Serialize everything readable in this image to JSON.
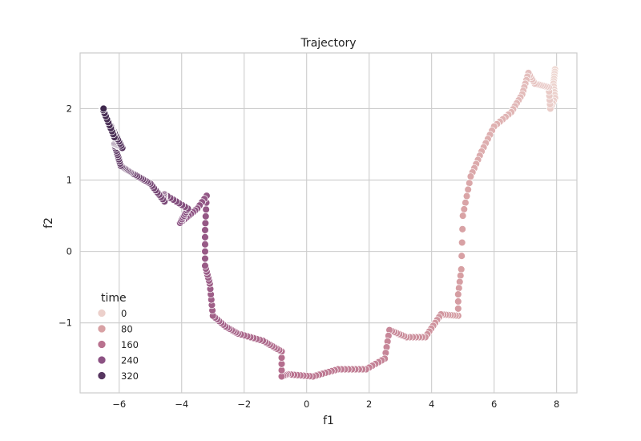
{
  "chart_data": {
    "type": "scatter",
    "title": "Trajectory",
    "xlabel": "f1",
    "ylabel": "f2",
    "xlim": [
      -7.25,
      8.65
    ],
    "ylim": [
      -1.98,
      2.78
    ],
    "xticks": [
      -6,
      -4,
      -2,
      0,
      2,
      4,
      6,
      8
    ],
    "xtick_labels": [
      "−6",
      "−4",
      "−2",
      "0",
      "2",
      "4",
      "6",
      "8"
    ],
    "yticks": [
      -1,
      0,
      1,
      2
    ],
    "ytick_labels": [
      "−1",
      "0",
      "1",
      "2"
    ],
    "grid": true,
    "legend": {
      "title": "time",
      "placement": "lower-left",
      "entries": [
        {
          "label": "0",
          "color": "#ecd0cb"
        },
        {
          "label": "80",
          "color": "#d8a1a4"
        },
        {
          "label": "160",
          "color": "#b9728f"
        },
        {
          "label": "240",
          "color": "#8c5283"
        },
        {
          "label": "320",
          "color": "#573660"
        }
      ]
    },
    "hue": {
      "name": "time",
      "min": 0,
      "max": 350,
      "color_stops": [
        "#efd9d3",
        "#d8a1a4",
        "#b9728f",
        "#8c5283",
        "#573660",
        "#2d1e3e"
      ]
    },
    "waypoints": [
      {
        "time": 0,
        "x": 7.95,
        "y": 2.55
      },
      {
        "time": 6,
        "x": 7.9,
        "y": 2.35
      },
      {
        "time": 11,
        "x": 7.95,
        "y": 2.15
      },
      {
        "time": 15,
        "x": 7.8,
        "y": 2.0
      },
      {
        "time": 20,
        "x": 7.75,
        "y": 2.3
      },
      {
        "time": 27,
        "x": 7.3,
        "y": 2.35
      },
      {
        "time": 32,
        "x": 7.1,
        "y": 2.5
      },
      {
        "time": 38,
        "x": 6.9,
        "y": 2.2
      },
      {
        "time": 44,
        "x": 6.55,
        "y": 1.95
      },
      {
        "time": 50,
        "x": 6.0,
        "y": 1.75
      },
      {
        "time": 56,
        "x": 5.6,
        "y": 1.4
      },
      {
        "time": 62,
        "x": 5.25,
        "y": 1.05
      },
      {
        "time": 68,
        "x": 5.0,
        "y": 0.5
      },
      {
        "time": 72,
        "x": 4.95,
        "y": -0.25
      },
      {
        "time": 76,
        "x": 4.85,
        "y": -0.6
      },
      {
        "time": 79,
        "x": 4.85,
        "y": -0.9
      },
      {
        "time": 86,
        "x": 4.3,
        "y": -0.88
      },
      {
        "time": 94,
        "x": 3.8,
        "y": -1.2
      },
      {
        "time": 100,
        "x": 3.2,
        "y": -1.2
      },
      {
        "time": 107,
        "x": 2.65,
        "y": -1.1
      },
      {
        "time": 112,
        "x": 2.5,
        "y": -1.5
      },
      {
        "time": 118,
        "x": 1.9,
        "y": -1.65
      },
      {
        "time": 126,
        "x": 1.0,
        "y": -1.65
      },
      {
        "time": 134,
        "x": 0.2,
        "y": -1.75
      },
      {
        "time": 142,
        "x": -0.6,
        "y": -1.72
      },
      {
        "time": 146,
        "x": -0.8,
        "y": -1.75
      },
      {
        "time": 150,
        "x": -0.8,
        "y": -1.4
      },
      {
        "time": 158,
        "x": -1.4,
        "y": -1.25
      },
      {
        "time": 166,
        "x": -2.2,
        "y": -1.15
      },
      {
        "time": 172,
        "x": -2.6,
        "y": -1.05
      },
      {
        "time": 178,
        "x": -3.0,
        "y": -0.9
      },
      {
        "time": 184,
        "x": -3.1,
        "y": -0.45
      },
      {
        "time": 190,
        "x": -3.25,
        "y": -0.2
      },
      {
        "time": 195,
        "x": -3.25,
        "y": 0.3
      },
      {
        "time": 200,
        "x": -3.2,
        "y": 0.78
      },
      {
        "time": 204,
        "x": -3.5,
        "y": 0.6
      },
      {
        "time": 212,
        "x": -4.05,
        "y": 0.4
      },
      {
        "time": 220,
        "x": -3.8,
        "y": 0.6
      },
      {
        "time": 228,
        "x": -4.55,
        "y": 0.8
      },
      {
        "time": 234,
        "x": -4.55,
        "y": 0.7
      },
      {
        "time": 242,
        "x": -5.0,
        "y": 0.95
      },
      {
        "time": 252,
        "x": -5.6,
        "y": 1.1
      },
      {
        "time": 262,
        "x": -5.95,
        "y": 1.2
      },
      {
        "time": 272,
        "x": -6.15,
        "y": 1.5
      },
      {
        "time": 282,
        "x": -5.9,
        "y": 1.45
      },
      {
        "time": 292,
        "x": -6.25,
        "y": 1.75
      },
      {
        "time": 300,
        "x": -6.15,
        "y": 1.6
      },
      {
        "time": 310,
        "x": -6.55,
        "y": 2.02
      },
      {
        "time": 320,
        "x": -6.5,
        "y": 2.0
      }
    ]
  }
}
